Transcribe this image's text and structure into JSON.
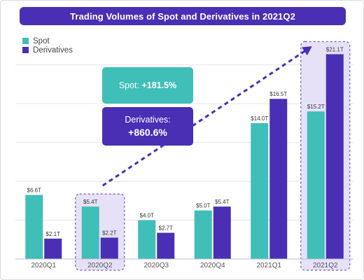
{
  "colors": {
    "spot": "#3fbfb8",
    "derivatives": "#4a2fb4",
    "title_bg": "#4a2fb4",
    "highlight_fill": "#e6e1f6",
    "highlight_stroke": "#6b58c9"
  },
  "callouts": {
    "spot_label": "Spot: ",
    "spot_value": "+181.5%",
    "derivatives_label": "Derivatives:",
    "derivatives_value": "+860.6%"
  },
  "chart_data": {
    "type": "bar",
    "title": "Trading Volumes of Spot and Derivatives in 2021Q2",
    "categories": [
      "2020Q1",
      "2020Q2",
      "2020Q3",
      "2020Q4",
      "2021Q1",
      "2021Q2"
    ],
    "series": [
      {
        "name": "Spot",
        "values": [
          6.6,
          5.4,
          4.0,
          5.0,
          14.0,
          15.2
        ],
        "labels": [
          "$6.6T",
          "$5.4T",
          "$4.0T",
          "$5.0T",
          "$14.0T",
          "$15.2T"
        ]
      },
      {
        "name": "Derivatives",
        "values": [
          2.1,
          2.2,
          2.7,
          5.4,
          16.5,
          21.1
        ],
        "labels": [
          "$2.1T",
          "$2.2T",
          "$2.7T",
          "$5.4T",
          "$16.5T",
          "$21.1T"
        ]
      }
    ],
    "highlighted_categories": [
      "2020Q2",
      "2021Q2"
    ],
    "ylim": [
      0,
      22.5
    ],
    "grid": true,
    "legend": "top-left",
    "xlabel": "",
    "ylabel": ""
  }
}
